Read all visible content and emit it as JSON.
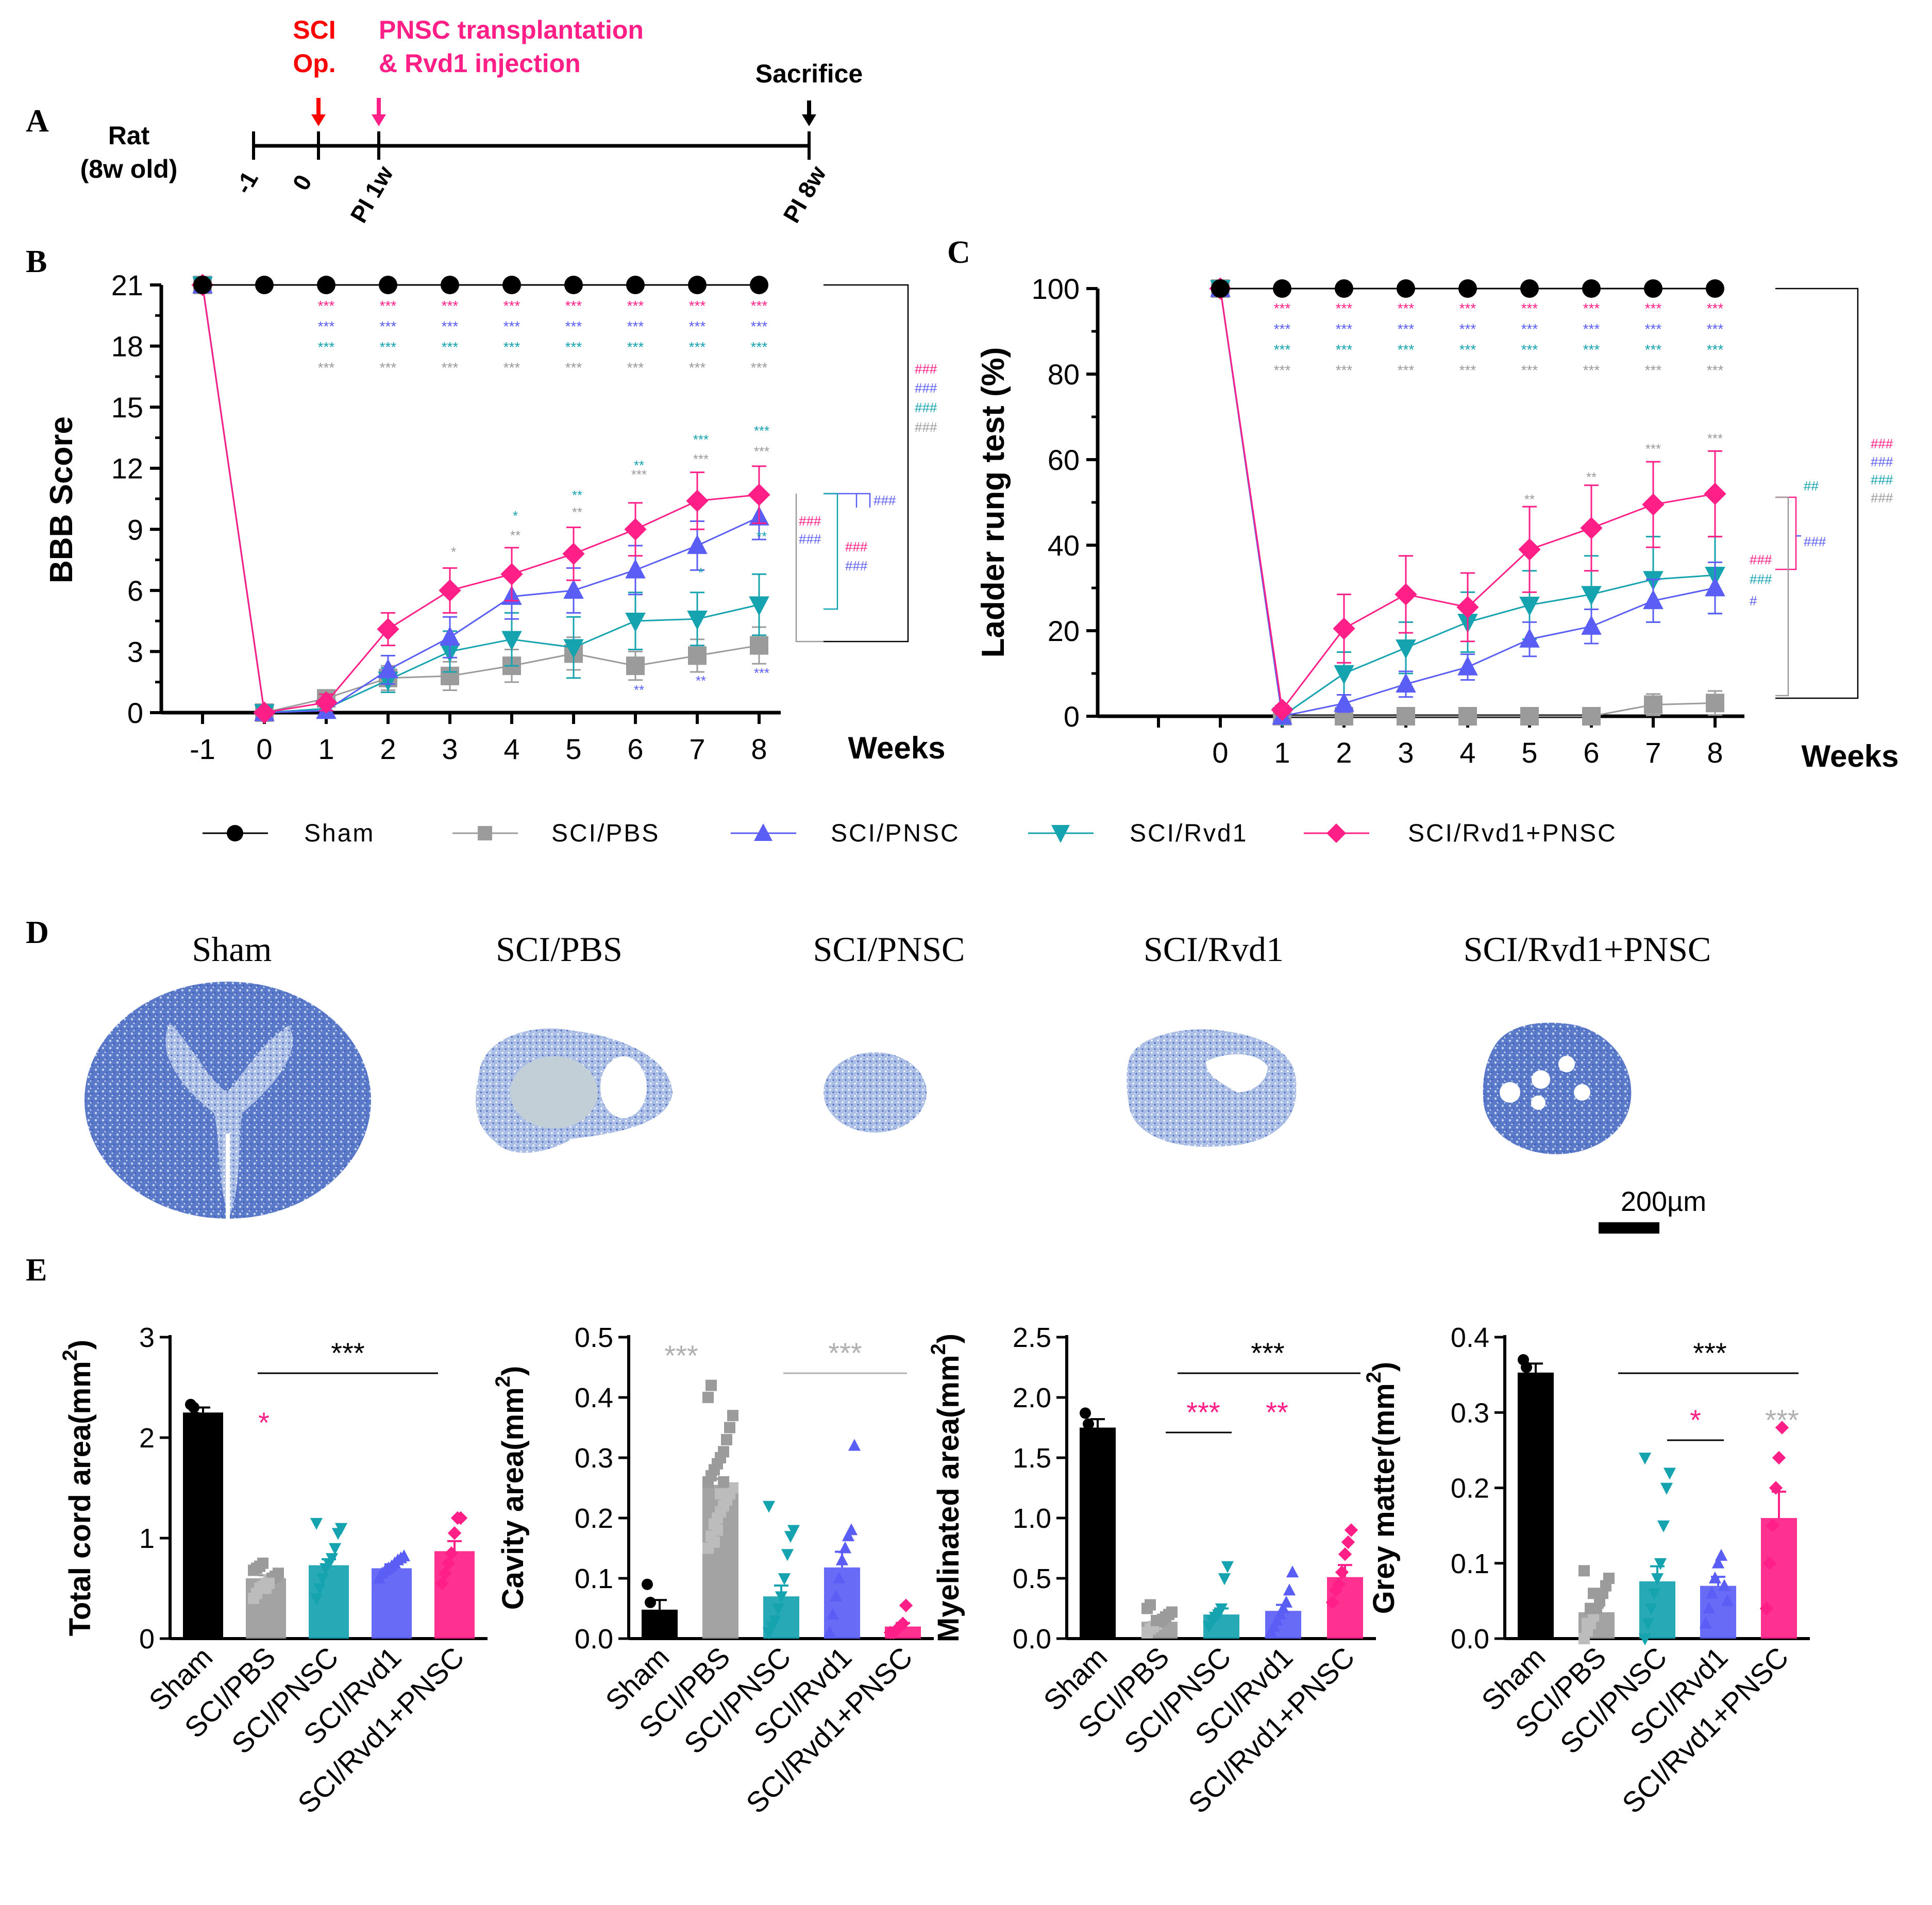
{
  "panel_labels": [
    "A",
    "B",
    "C",
    "D",
    "E"
  ],
  "timeline": {
    "subject_line1": "Rat",
    "subject_line2": "(8w old)",
    "ticks": [
      "-1",
      "0",
      "PI 1w",
      "PI 8w"
    ],
    "event1_line1": "SCI",
    "event1_line2": "Op.",
    "event2_line1": "PNSC transplantation",
    "event2_line2": "& Rvd1 injection",
    "event3": "Sacrifice",
    "colors": {
      "sci": "#ff0000",
      "pnsc": "#ff1f87",
      "sacrifice": "#000000"
    }
  },
  "legend": {
    "items": [
      {
        "label": "Sham",
        "marker": "circle",
        "color": "#000000"
      },
      {
        "label": "SCI/PBS",
        "marker": "square",
        "color": "#9b9b9b"
      },
      {
        "label": "SCI/PNSC",
        "marker": "triangle-up",
        "color": "#5a5ef5"
      },
      {
        "label": "SCI/Rvd1",
        "marker": "triangle-down",
        "color": "#16a3b0"
      },
      {
        "label": "SCI/Rvd1+PNSC",
        "marker": "diamond",
        "color": "#ff1f87"
      }
    ]
  },
  "panel_d": {
    "labels": [
      "Sham",
      "SCI/PBS",
      "SCI/PNSC",
      "SCI/Rvd1",
      "SCI/Rvd1+PNSC"
    ],
    "scale_bar": "200µm"
  },
  "chart_data": [
    {
      "id": "B",
      "type": "line",
      "ylabel": "BBB Score",
      "xlabel": "Weeks",
      "x": [
        -1,
        0,
        1,
        2,
        3,
        4,
        5,
        6,
        7,
        8
      ],
      "ylim": [
        0,
        21
      ],
      "yticks": [
        0,
        3,
        6,
        9,
        12,
        15,
        18,
        21
      ],
      "series": [
        {
          "name": "Sham",
          "values": [
            21,
            21,
            21,
            21,
            21,
            21,
            21,
            21,
            21,
            21
          ],
          "err": [
            0,
            0,
            0,
            0,
            0,
            0,
            0,
            0,
            0,
            0
          ]
        },
        {
          "name": "SCI/PBS",
          "values": [
            21,
            0,
            0.7,
            1.7,
            1.8,
            2.3,
            2.9,
            2.3,
            2.8,
            3.3
          ],
          "err": [
            0,
            0,
            0.3,
            0.6,
            0.7,
            0.8,
            0.8,
            0.7,
            0.8,
            0.9
          ]
        },
        {
          "name": "SCI/PNSC",
          "values": [
            21,
            0,
            0.1,
            2.1,
            3.7,
            5.7,
            6.0,
            7.0,
            8.2,
            9.6
          ],
          "err": [
            0,
            0,
            0.2,
            0.7,
            1.0,
            1.1,
            1.1,
            1.2,
            1.2,
            1.1
          ]
        },
        {
          "name": "SCI/Rvd1",
          "values": [
            21,
            0,
            0.2,
            1.6,
            3.0,
            3.6,
            3.2,
            4.5,
            4.6,
            5.3
          ],
          "err": [
            0,
            0,
            0.3,
            0.6,
            1.0,
            1.3,
            1.5,
            1.4,
            1.3,
            1.5
          ]
        },
        {
          "name": "SCI/Rvd1+PNSC",
          "values": [
            21,
            0,
            0.5,
            4.1,
            6.0,
            6.8,
            7.8,
            9.0,
            10.4,
            10.7
          ],
          "err": [
            0,
            0,
            0.4,
            0.8,
            1.1,
            1.3,
            1.3,
            1.3,
            1.4,
            1.4
          ]
        }
      ],
      "top_stars": [
        "***",
        "***",
        "***",
        "***"
      ],
      "annot_b_mid": [
        "*",
        "**",
        "**",
        "***",
        "***",
        "***"
      ],
      "annot_b_teal": [
        "*",
        "**",
        "**",
        "***",
        "***",
        "*",
        "**"
      ],
      "annot_b_blue": [
        "**",
        "**",
        "***"
      ],
      "brackets": [
        "###",
        "###",
        "###",
        "###",
        "###",
        "###",
        "###",
        "###",
        "###"
      ]
    },
    {
      "id": "C",
      "type": "line",
      "ylabel": "Ladder rung test (%)",
      "xlabel": "Weeks",
      "x": [
        0,
        1,
        2,
        3,
        4,
        5,
        6,
        7,
        8
      ],
      "ylim": [
        0,
        100
      ],
      "yticks": [
        0,
        20,
        40,
        60,
        80,
        100
      ],
      "series": [
        {
          "name": "Sham",
          "values": [
            100,
            100,
            100,
            100,
            100,
            100,
            100,
            100,
            100
          ],
          "err": [
            0,
            0,
            0,
            0,
            0,
            0,
            0,
            0,
            0
          ]
        },
        {
          "name": "SCI/PBS",
          "values": [
            100,
            0,
            0,
            0,
            0,
            0,
            0,
            2.7,
            3.1
          ],
          "err": [
            0,
            0,
            0,
            0,
            0,
            0,
            0,
            2.5,
            2.8
          ]
        },
        {
          "name": "SCI/PNSC",
          "values": [
            100,
            0,
            3,
            7.5,
            11.5,
            18,
            21,
            27,
            30
          ],
          "err": [
            0,
            0,
            2,
            3,
            3,
            4,
            4,
            5,
            6
          ]
        },
        {
          "name": "SCI/Rvd1",
          "values": [
            100,
            0,
            10,
            16,
            22,
            26,
            28.5,
            32,
            33
          ],
          "err": [
            0,
            0,
            5,
            6,
            7,
            8,
            9,
            10,
            9
          ]
        },
        {
          "name": "SCI/Rvd1+PNSC",
          "values": [
            100,
            1.5,
            20.5,
            28.5,
            25.5,
            39,
            44,
            49.5,
            52
          ],
          "err": [
            0,
            1,
            8,
            9,
            8,
            10,
            10,
            10,
            10
          ]
        }
      ],
      "top_stars": [
        "***",
        "***",
        "***",
        "***"
      ],
      "annot_c_gray": [
        "**",
        "**",
        "***",
        "***"
      ],
      "brackets": [
        "###",
        "###",
        "###",
        "###",
        "##",
        "###",
        "###",
        "###",
        "#"
      ]
    },
    {
      "id": "E1",
      "type": "bar",
      "ylabel": "Total cord area(mm",
      "ysup": "2",
      "ylabel_end": ")",
      "categories": [
        "Sham",
        "SCI/PBS",
        "SCI/PNSC",
        "SCI/Rvd1",
        "SCI/Rvd1+PNSC"
      ],
      "values": [
        2.25,
        0.6,
        0.73,
        0.7,
        0.87
      ],
      "err": [
        0.05,
        0.03,
        0.06,
        0.04,
        0.1
      ],
      "ylim": [
        0,
        3
      ],
      "yticks": [
        "0",
        "1",
        "2",
        "3"
      ],
      "ytick_vals": [
        0,
        1,
        2,
        3
      ],
      "points": [
        [
          2.33,
          2.3,
          2.2,
          2.18
        ],
        [
          0.4,
          0.45,
          0.5,
          0.52,
          0.55,
          0.58,
          0.6,
          0.62,
          0.65,
          0.68,
          0.7,
          0.72,
          0.75,
          0.5,
          0.55
        ],
        [
          0.4,
          0.5,
          0.6,
          0.7,
          0.75,
          0.8,
          0.9,
          1.05,
          1.1,
          1.15
        ],
        [
          0.6,
          0.65,
          0.68,
          0.7,
          0.72,
          0.75,
          0.78,
          0.8,
          0.82
        ],
        [
          0.55,
          0.65,
          0.75,
          0.85,
          1.05,
          1.2,
          1.2
        ]
      ],
      "sig": [
        "***",
        "*"
      ]
    },
    {
      "id": "E2",
      "type": "bar",
      "ylabel": "Cavity area(mm",
      "ysup": "2",
      "ylabel_end": ")",
      "categories": [
        "Sham",
        "SCI/PBS",
        "SCI/PNSC",
        "SCI/Rvd1",
        "SCI/Rvd1+PNSC"
      ],
      "values": [
        0.048,
        0.255,
        0.07,
        0.118,
        0.02
      ],
      "err": [
        0.016,
        0.01,
        0.018,
        0.026,
        0.006
      ],
      "ylim": [
        0,
        0.5
      ],
      "yticks": [
        "0.0",
        "0.1",
        "0.2",
        "0.3",
        "0.4",
        "0.5"
      ],
      "ytick_vals": [
        0,
        0.1,
        0.2,
        0.3,
        0.4,
        0.5
      ],
      "points": [
        [
          0.09,
          0.06,
          0.03,
          0.02
        ],
        [
          0.15,
          0.17,
          0.19,
          0.2,
          0.21,
          0.22,
          0.23,
          0.24,
          0.25,
          0.26,
          0.27,
          0.28,
          0.29,
          0.3,
          0.31,
          0.33,
          0.35,
          0.37,
          0.4,
          0.42,
          0.16,
          0.18,
          0.24,
          0.26
        ],
        [
          0.01,
          0.02,
          0.03,
          0.05,
          0.07,
          0.1,
          0.14,
          0.17,
          0.18,
          0.22
        ],
        [
          0.01,
          0.04,
          0.07,
          0.1,
          0.13,
          0.15,
          0.17,
          0.18,
          0.32
        ],
        [
          0.01,
          0.01,
          0.015,
          0.02,
          0.025,
          0.055
        ]
      ],
      "sig": [
        "***",
        "***"
      ]
    },
    {
      "id": "E3",
      "type": "bar",
      "ylabel": "Myelinated area(mm",
      "ysup": "2",
      "ylabel_end": ")",
      "categories": [
        "Sham",
        "SCI/PBS",
        "SCI/PNSC",
        "SCI/Rvd1",
        "SCI/Rvd1+PNSC"
      ],
      "values": [
        1.75,
        0.14,
        0.2,
        0.23,
        0.51
      ],
      "err": [
        0.07,
        0.02,
        0.05,
        0.05,
        0.1
      ],
      "ylim": [
        0,
        2.5
      ],
      "yticks": [
        "0.0",
        "0.5",
        "1.0",
        "1.5",
        "2.0",
        "2.5"
      ],
      "ytick_vals": [
        0,
        0.5,
        1.0,
        1.5,
        2.0,
        2.5
      ],
      "points": [
        [
          1.87,
          1.78,
          1.7,
          1.63
        ],
        [
          0.05,
          0.08,
          0.1,
          0.12,
          0.14,
          0.16,
          0.18,
          0.2,
          0.22,
          0.25,
          0.28,
          0.1,
          0.15
        ],
        [
          0.1,
          0.15,
          0.18,
          0.2,
          0.25,
          0.5,
          0.6
        ],
        [
          0.05,
          0.1,
          0.15,
          0.2,
          0.25,
          0.3,
          0.4,
          0.55
        ],
        [
          0.3,
          0.4,
          0.45,
          0.55,
          0.7,
          0.8,
          0.9
        ]
      ],
      "sig": [
        "***",
        "***",
        "**"
      ]
    },
    {
      "id": "E4",
      "type": "bar",
      "ylabel": "Grey matter(mm",
      "ysup": "2",
      "ylabel_end": ")",
      "categories": [
        "Sham",
        "SCI/PBS",
        "SCI/PNSC",
        "SCI/Rvd1",
        "SCI/Rvd1+PNSC"
      ],
      "values": [
        0.353,
        0.035,
        0.076,
        0.07,
        0.16
      ],
      "err": [
        0.012,
        0.006,
        0.02,
        0.012,
        0.035
      ],
      "ylim": [
        0,
        0.4
      ],
      "yticks": [
        "0.0",
        "0.1",
        "0.2",
        "0.3",
        "0.4"
      ],
      "ytick_vals": [
        0,
        0.1,
        0.2,
        0.3,
        0.4
      ],
      "points": [
        [
          0.37,
          0.36,
          0.34,
          0.32
        ],
        [
          0.0,
          0.01,
          0.02,
          0.03,
          0.04,
          0.05,
          0.06,
          0.07,
          0.08,
          0.09,
          0.02,
          0.04,
          0.06
        ],
        [
          0.0,
          0.02,
          0.04,
          0.06,
          0.08,
          0.1,
          0.15,
          0.2,
          0.22,
          0.24
        ],
        [
          0.02,
          0.04,
          0.06,
          0.08,
          0.1,
          0.11,
          0.07,
          0.05
        ],
        [
          0.04,
          0.1,
          0.15,
          0.2,
          0.24,
          0.28
        ]
      ],
      "sig": [
        "***",
        "*",
        "***"
      ]
    }
  ]
}
